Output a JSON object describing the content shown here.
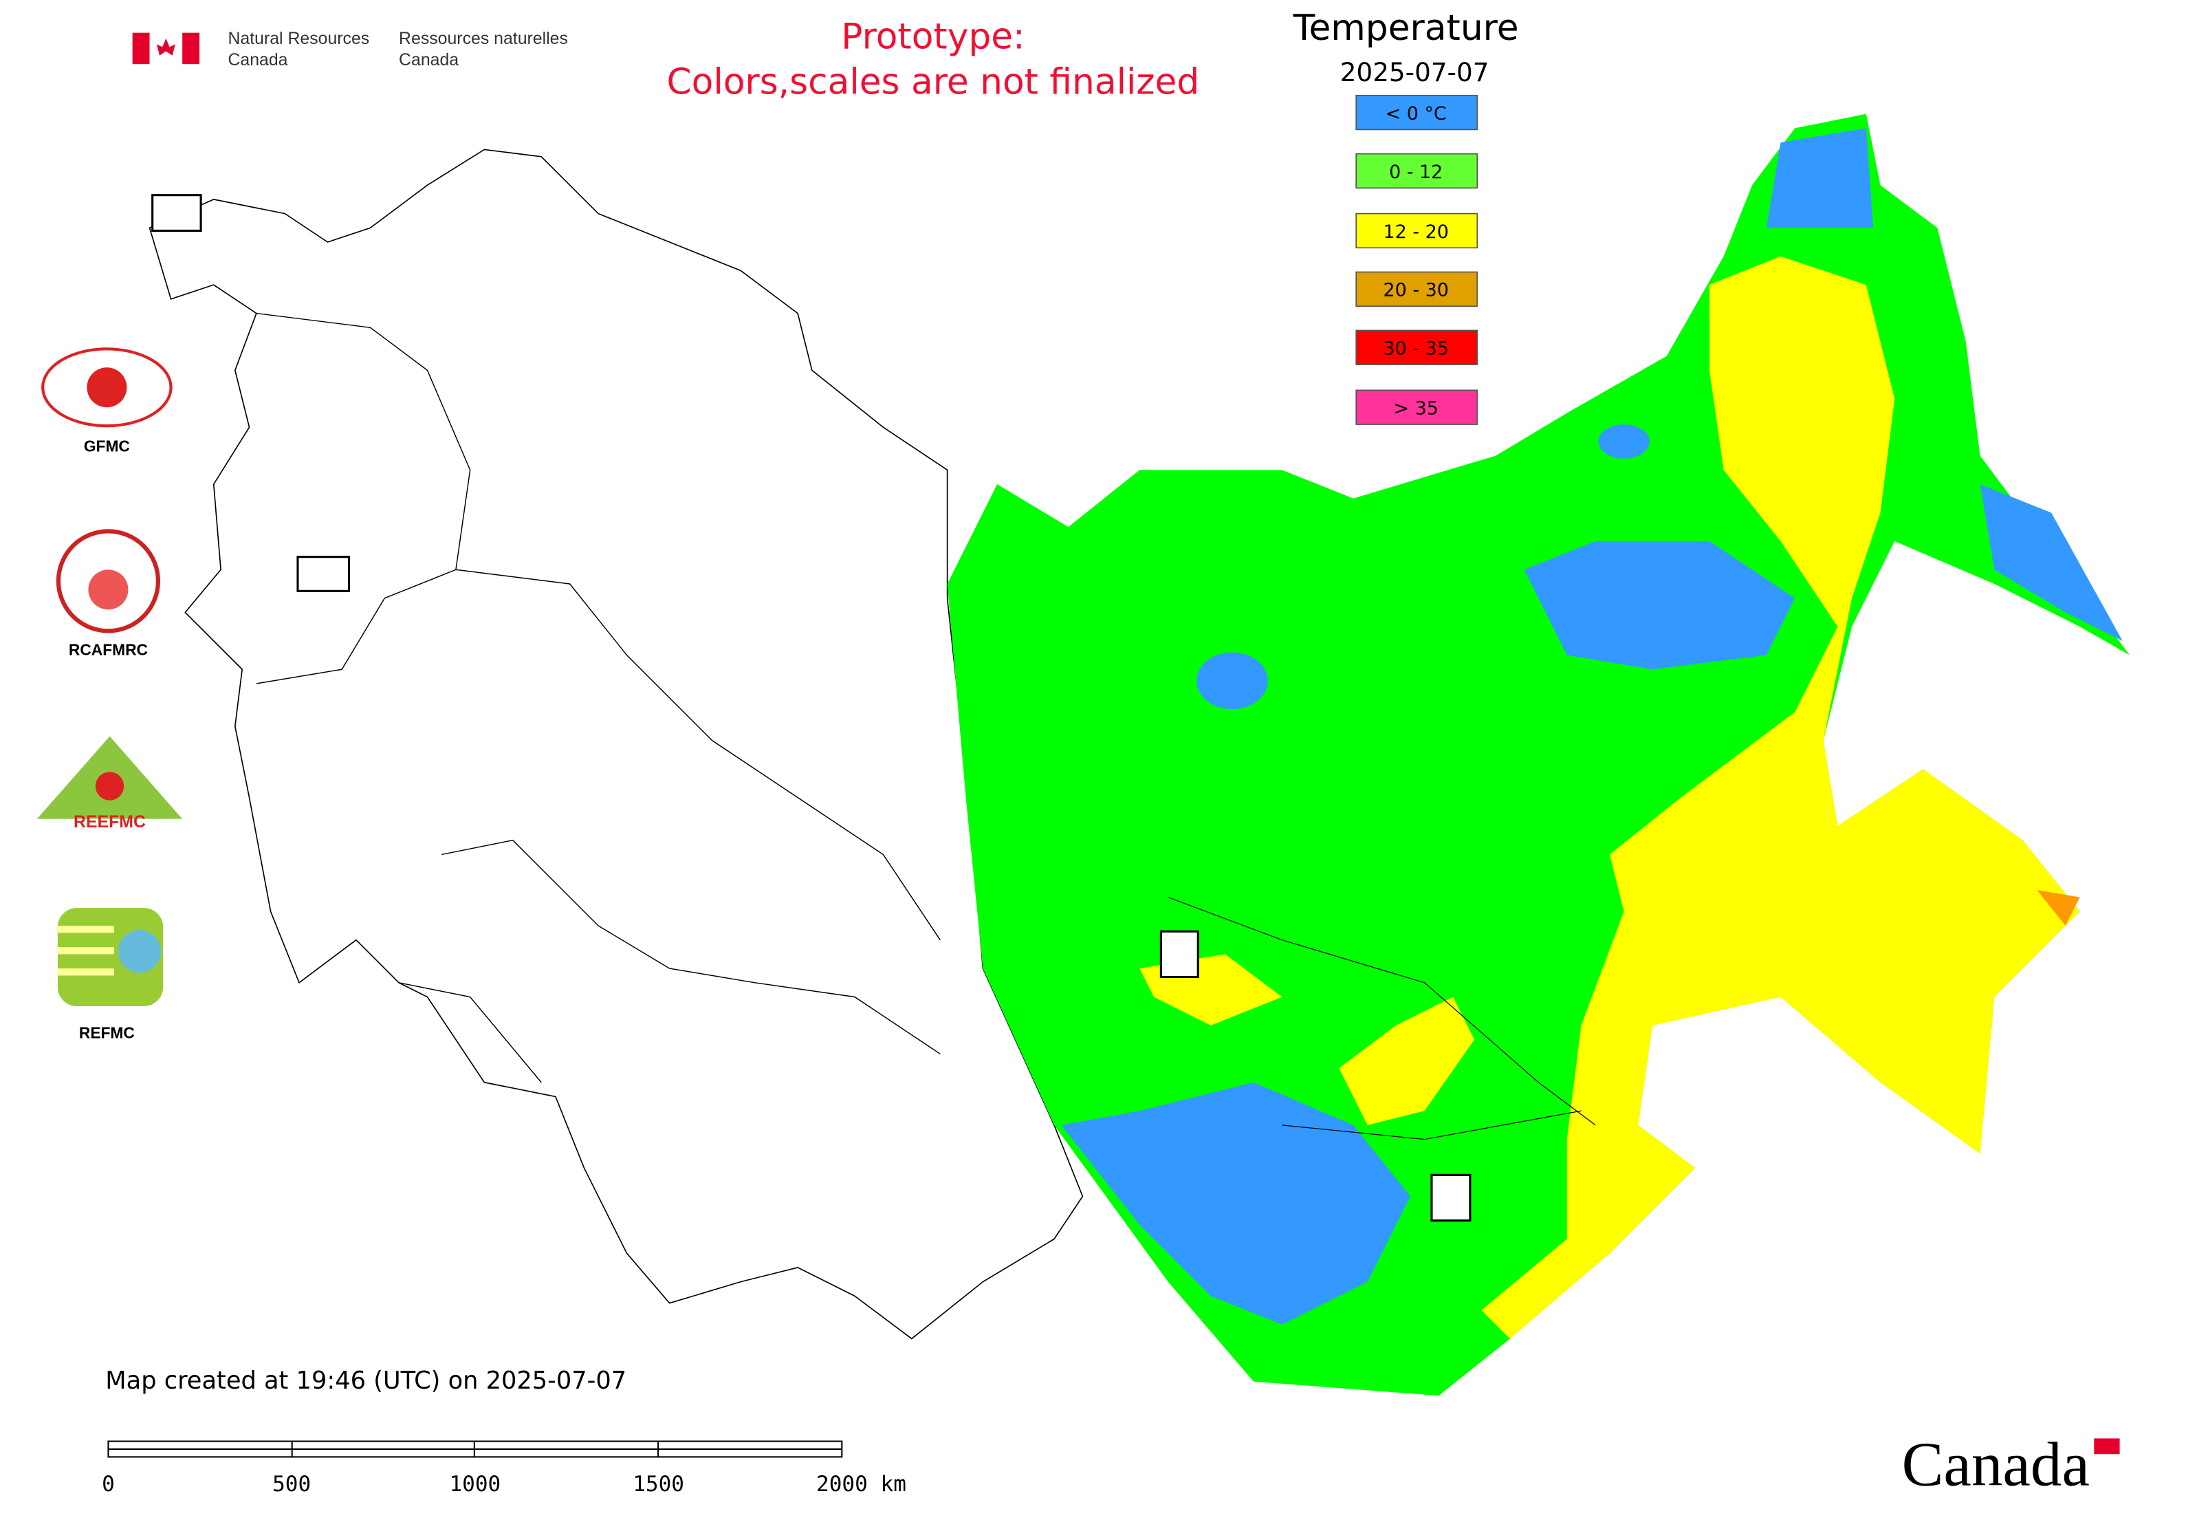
{
  "header": {
    "agency_en": [
      "Natural Resources",
      "Canada"
    ],
    "agency_fr": [
      "Ressources naturelles",
      "Canada"
    ],
    "notice": [
      "Prototype:",
      "Colors,scales are not finalized"
    ]
  },
  "legend": {
    "title": "Temperature",
    "date": "2025-07-07",
    "items": [
      {
        "label": "< 0 °C",
        "color": "#3399ff"
      },
      {
        "label": "0 - 12",
        "color": "#66ff33"
      },
      {
        "label": "12 - 20",
        "color": "#ffff00"
      },
      {
        "label": "20 - 30",
        "color": "#e0a000"
      },
      {
        "label": "30 - 35",
        "color": "#ff0000"
      },
      {
        "label": "> 35",
        "color": "#ff3399"
      }
    ]
  },
  "logos": [
    "GFMC",
    "RCAFMRC",
    "REEFMC",
    "REFMC"
  ],
  "footer": {
    "created": "Map created at 19:46 (UTC) on 2025-07-07",
    "scale_labels": [
      "0",
      "500",
      "1000",
      "1500",
      "2000 km"
    ],
    "wordmark": "Canada"
  }
}
